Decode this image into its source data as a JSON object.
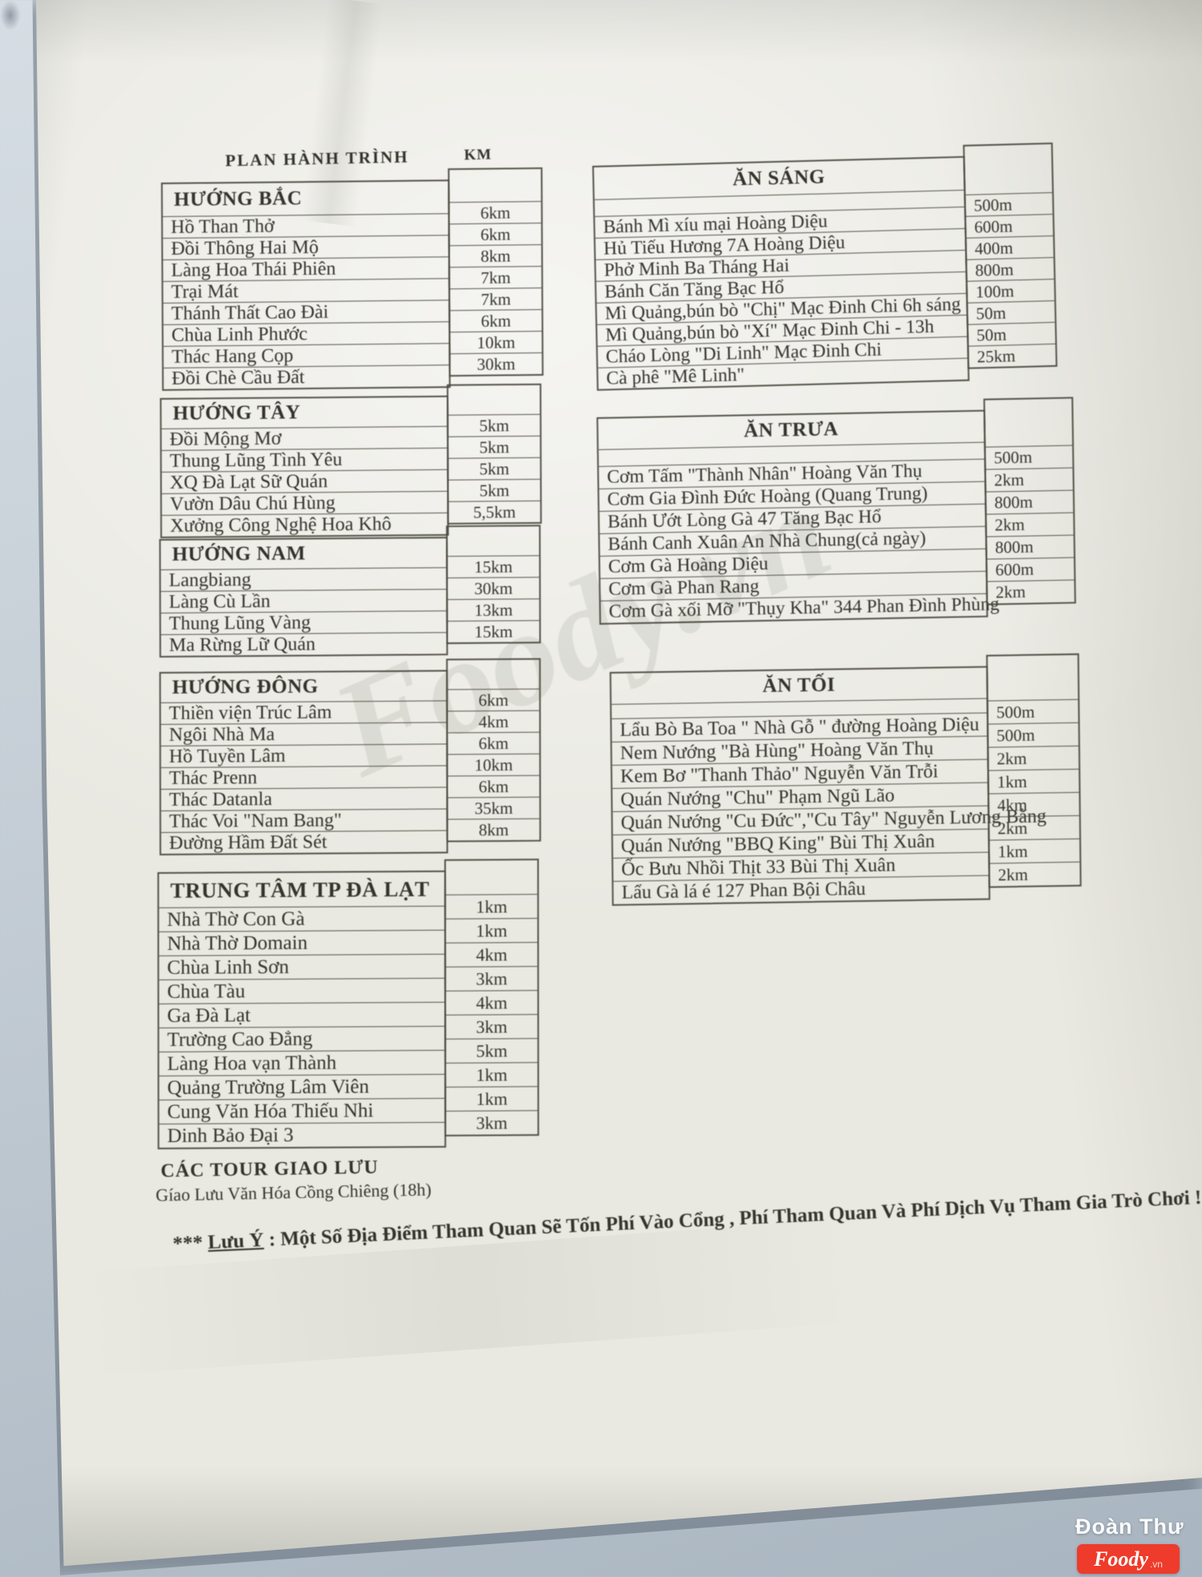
{
  "photo": {
    "surface_color": "#c5ced6",
    "paper_color": "#e9e8e1",
    "ink_color": "#34332c"
  },
  "header": {
    "title": "PLAN HÀNH TRÌNH",
    "distance_column_label": "KM"
  },
  "tables": {
    "left": [
      {
        "header": "HƯỚNG BẮC",
        "rows": [
          [
            "Hồ Than Thở",
            "6km"
          ],
          [
            "Đồi Thông Hai Mộ",
            "6km"
          ],
          [
            "Làng Hoa Thái Phiên",
            "8km"
          ],
          [
            "Trại Mát",
            "7km"
          ],
          [
            "Thánh Thất Cao Đài",
            "7km"
          ],
          [
            "Chùa Linh Phước",
            "6km"
          ],
          [
            "Thác Hang Cọp",
            "10km"
          ],
          [
            "Đồi Chè Cầu Đất",
            "30km"
          ]
        ]
      },
      {
        "header": "HƯỚNG TÂY",
        "rows": [
          [
            "Đồi Mộng Mơ",
            "5km"
          ],
          [
            "Thung Lũng Tình Yêu",
            "5km"
          ],
          [
            "XQ Đà Lạt Sữ Quán",
            "5km"
          ],
          [
            "Vườn Dâu Chú Hùng",
            "5km"
          ],
          [
            "Xưởng Công Nghệ Hoa Khô",
            "5,5km"
          ]
        ]
      },
      {
        "header": "HƯỚNG NAM",
        "rows": [
          [
            "Langbiang",
            "15km"
          ],
          [
            "Làng Cù Lần",
            "30km"
          ],
          [
            "Thung Lũng Vàng",
            "13km"
          ],
          [
            "Ma Rừng Lữ Quán",
            "15km"
          ]
        ]
      },
      {
        "header": "HƯỚNG ĐÔNG",
        "rows": [
          [
            "Thiền viện Trúc Lâm",
            "6km"
          ],
          [
            "Ngôi Nhà Ma",
            "4km"
          ],
          [
            "Hồ Tuyền Lâm",
            "6km"
          ],
          [
            "Thác Prenn",
            "10km"
          ],
          [
            "Thác Datanla",
            "6km"
          ],
          [
            "Thác Voi \"Nam Bang\"",
            "35km"
          ],
          [
            "Đường Hầm Đất Sét",
            "8km"
          ]
        ]
      },
      {
        "header": "TRUNG TÂM TP ĐÀ LẠT",
        "rows": [
          [
            "Nhà Thờ Con Gà",
            "1km"
          ],
          [
            "Nhà Thờ Domain",
            "1km"
          ],
          [
            "Chùa Linh Sơn",
            "4km"
          ],
          [
            "Chùa Tàu",
            "3km"
          ],
          [
            "Ga Đà Lạt",
            "4km"
          ],
          [
            "Trường Cao Đẳng",
            "3km"
          ],
          [
            "Làng Hoa vạn Thành",
            "5km"
          ],
          [
            "Quảng Trường Lâm Viên",
            "1km"
          ],
          [
            "Cung Văn Hóa Thiếu Nhi",
            "1km"
          ],
          [
            "Dinh Bảo Đại 3",
            "3km"
          ]
        ]
      }
    ],
    "right": [
      {
        "header": "ĂN SÁNG",
        "rows": [
          [
            "Bánh Mì xíu mại Hoàng Diệu",
            "500m"
          ],
          [
            "Hủ Tiếu Hương 7A Hoàng Diệu",
            "600m"
          ],
          [
            "Phở Minh Ba Tháng Hai",
            "400m"
          ],
          [
            "Bánh Căn Tăng Bạc Hổ",
            "800m"
          ],
          [
            "Mì Quảng,bún bò \"Chị\" Mạc Đinh Chi 6h sáng",
            "100m"
          ],
          [
            "Mì Quảng,bún bò \"Xí\" Mạc Đinh Chi - 13h",
            "50m"
          ],
          [
            "Cháo Lòng \"Di Linh\" Mạc Đinh Chi",
            "50m"
          ],
          [
            "Cà phê \"Mê Linh\"",
            "25km"
          ]
        ]
      },
      {
        "header": "ĂN TRƯA",
        "rows": [
          [
            "Cơm Tấm \"Thành Nhân\" Hoàng Văn Thụ",
            "500m"
          ],
          [
            "Cơm Gia Đình Đức Hoàng (Quang Trung)",
            "2km"
          ],
          [
            "Bánh Ướt Lòng Gà 47 Tăng Bạc Hổ",
            "800m"
          ],
          [
            "Bánh Canh Xuân An Nhà Chung(cả ngày)",
            "2km"
          ],
          [
            "Cơm Gà Hoàng Diệu",
            "800m"
          ],
          [
            "Cơm Gà Phan Rang",
            "600m"
          ],
          [
            "Cơm Gà xối Mỡ \"Thụy Kha\" 344 Phan Đình Phùng",
            "2km"
          ]
        ]
      },
      {
        "header": "ĂN TỐI",
        "rows": [
          [
            "Lẩu Bò Ba Toa \" Nhà Gỗ \" đường Hoàng Diệu",
            "500m"
          ],
          [
            "Nem Nướng \"Bà Hùng\"  Hoàng Văn Thụ",
            "500m"
          ],
          [
            "Kem Bơ \"Thanh Thảo\" Nguyễn Văn Trỗi",
            "2km"
          ],
          [
            "Quán Nướng \"Chu\" Phạm Ngũ Lão",
            "1km"
          ],
          [
            "Quán Nướng \"Cu Đức\",\"Cu Tây\"  Nguyễn Lương Bằng",
            "4km"
          ],
          [
            "Quán Nướng \"BBQ King\" Bùi Thị Xuân",
            "2km"
          ],
          [
            "Ốc Bưu Nhồi Thịt 33 Bùi Thị Xuân",
            "1km"
          ],
          [
            "Lẩu Gà lá é 127 Phan Bội Châu",
            "2km"
          ]
        ]
      }
    ]
  },
  "footer": {
    "tour_title": "CÁC TOUR GIAO LƯU",
    "tour_item": "Gíao Lưu Văn Hóa Cồng Chiêng (18h)",
    "note_prefix": "*** ",
    "note_label": "Lưu Ý",
    "note_text": " : Một Số Địa Điểm Tham Quan Sẽ Tốn Phí Vào Cổng , Phí Tham Quan Và Phí Dịch Vụ Tham Gia Trò Chơi !"
  },
  "watermark": {
    "center_text": "Foody.vn"
  },
  "credit": {
    "author": "Đoàn Thư",
    "brand": "Foody",
    "brand_suffix": ".vn",
    "brand_color": "#ee3b2b"
  }
}
